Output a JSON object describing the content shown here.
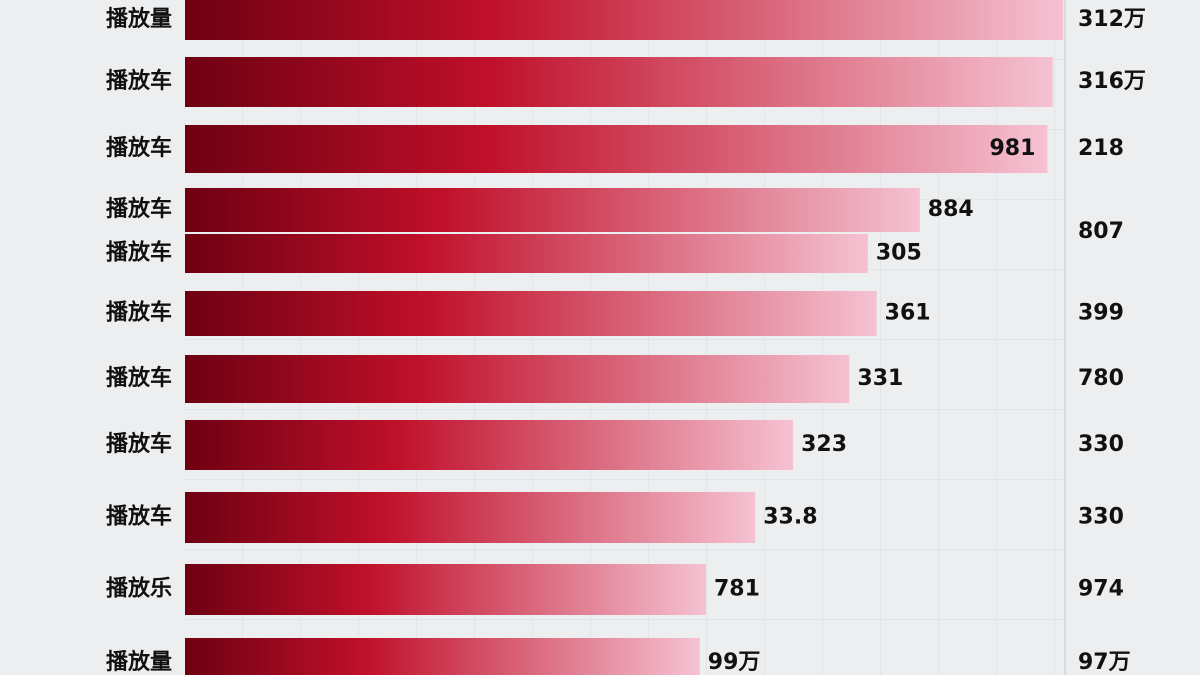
{
  "chart_data": {
    "type": "bar",
    "orientation": "horizontal",
    "xlim": [
      0,
      100
    ],
    "colors": [
      "#6e0012",
      "#c0102a",
      "#f5c2d2"
    ],
    "rows": [
      {
        "label": "播放量",
        "length": 99.8,
        "side_label": "312万"
      },
      {
        "label": "播放车",
        "length": 98.6,
        "side_label": "316万"
      },
      {
        "label": "播放车",
        "length": 98,
        "value_label": "981",
        "side_label": "218"
      },
      {
        "label": "播放车",
        "length": 83.5,
        "value_label": "884",
        "side_label": "807"
      },
      {
        "label": "播放车",
        "length": 77.6,
        "value_label": "305"
      },
      {
        "label": "播放车",
        "length": 78.6,
        "value_label": "361",
        "side_label": "399"
      },
      {
        "label": "播放车",
        "length": 75.5,
        "value_label": "331",
        "side_label": "780"
      },
      {
        "label": "播放车",
        "length": 69.1,
        "value_label": "323",
        "side_label": "330"
      },
      {
        "label": "播放车",
        "length": 64.8,
        "value_label": "33.8",
        "side_label": "330"
      },
      {
        "label": "播放乐",
        "length": 59.2,
        "value_label": "781",
        "side_label": "974"
      },
      {
        "label": "播放量",
        "length": 58.5,
        "value_label": "99万",
        "side_label": "97万"
      }
    ]
  }
}
